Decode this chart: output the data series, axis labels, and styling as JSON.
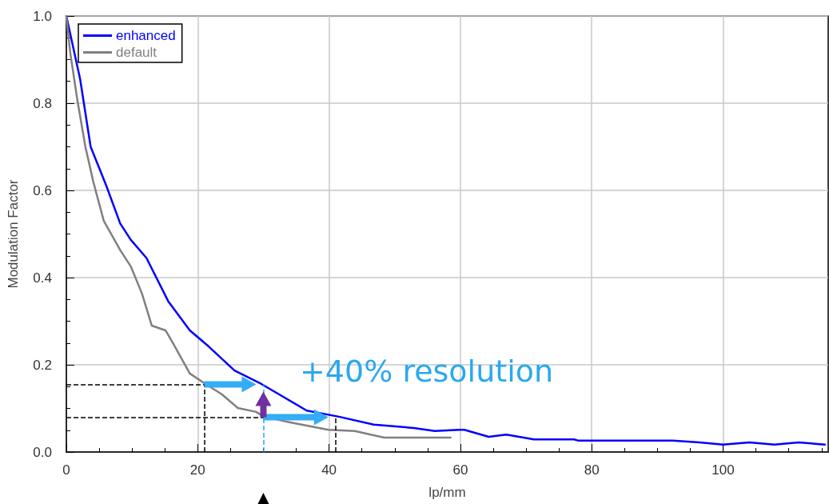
{
  "chart_data": {
    "type": "line",
    "xlabel": "lp/mm",
    "ylabel": "Modulation Factor",
    "xlim": [
      0,
      116
    ],
    "xticks": [
      0,
      20,
      40,
      60,
      80,
      100
    ],
    "ylim": [
      0,
      1
    ],
    "yticks": [
      {
        "value": 0,
        "label": "0.0"
      },
      0.2,
      0.4,
      0.6,
      0.8,
      {
        "value": 1,
        "label": "1.0"
      }
    ],
    "grid": true,
    "legend": "top left",
    "marker": "none",
    "line_style": "solid",
    "series": [
      {
        "name": "enhanced",
        "color": "#0000ff",
        "x": [
          0,
          2.1,
          3.7,
          6.1,
          8.2,
          9.8,
          12.2,
          15.5,
          18.8,
          21.6,
          25.6,
          29.7,
          36.6,
          41.5,
          46.8,
          52.9,
          56.1,
          59.8,
          60.6,
          64.3,
          67,
          71.2,
          77.3,
          78,
          92.3,
          96.4,
          100,
          104,
          107.8,
          111.5,
          115.5
        ],
        "values": [
          1.0,
          0.855,
          0.7,
          0.61,
          0.524,
          0.487,
          0.445,
          0.346,
          0.279,
          0.243,
          0.187,
          0.156,
          0.095,
          0.081,
          0.063,
          0.055,
          0.048,
          0.051,
          0.051,
          0.035,
          0.04,
          0.029,
          0.029,
          0.026,
          0.026,
          0.022,
          0.017,
          0.022,
          0.017,
          0.022,
          0.017
        ]
      },
      {
        "name": "default",
        "color": "#808080",
        "x": [
          0,
          0.6,
          1.7,
          2.9,
          4.1,
          5.7,
          8.2,
          9.8,
          11.5,
          13.0,
          15.1,
          16.3,
          18.8,
          21.2,
          23.7,
          26.1,
          28.9,
          30.1,
          34.1,
          39.9,
          43.9,
          48.4,
          58.5
        ],
        "values": [
          1.0,
          0.915,
          0.805,
          0.7,
          0.62,
          0.53,
          0.463,
          0.426,
          0.364,
          0.29,
          0.279,
          0.248,
          0.18,
          0.156,
          0.132,
          0.101,
          0.092,
          0.081,
          0.068,
          0.051,
          0.048,
          0.033,
          0.033
        ]
      }
    ],
    "ref_lines": [
      {
        "axis": "y",
        "value": 0.155,
        "label": null,
        "color": "#000000",
        "line_style": "dashed"
      },
      {
        "axis": "y",
        "value": 0.08,
        "label": null,
        "color": "#000000",
        "line_style": "dashed"
      },
      {
        "axis": "x",
        "value": 21,
        "label": null,
        "color": "#000000",
        "line_style": "dashed"
      },
      {
        "axis": "x",
        "value": 41,
        "label": null,
        "color": "#000000",
        "line_style": "dashed"
      },
      {
        "axis": "x",
        "value": 30,
        "label": null,
        "color": "#29a8f0",
        "line_style": "dashed"
      }
    ],
    "annotations": [
      "+40% resolution"
    ]
  }
}
